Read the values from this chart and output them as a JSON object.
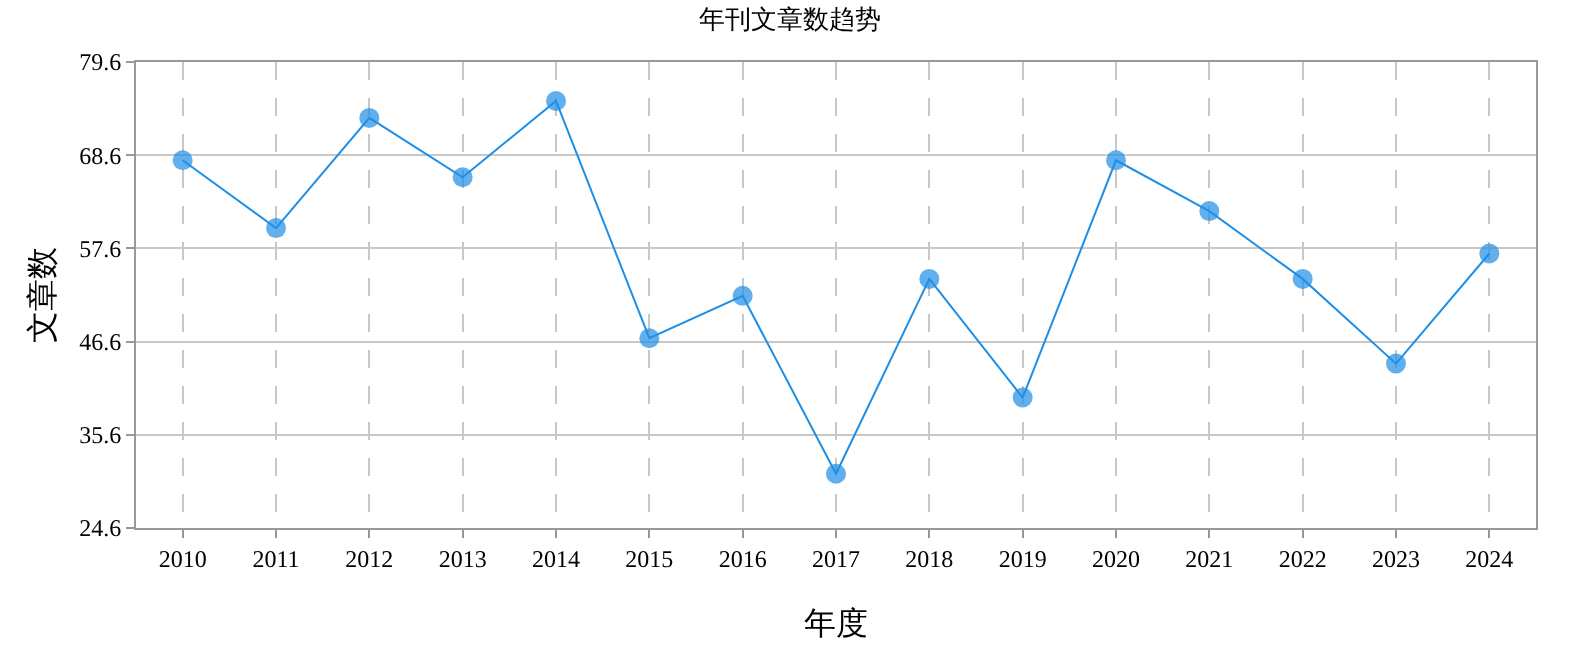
{
  "chart_data": {
    "type": "line",
    "title": "年刊文章数趋势",
    "xlabel": "年度",
    "ylabel": "文章数",
    "categories": [
      "2010",
      "2011",
      "2012",
      "2013",
      "2014",
      "2015",
      "2016",
      "2017",
      "2018",
      "2019",
      "2020",
      "2021",
      "2022",
      "2023",
      "2024"
    ],
    "series": [
      {
        "color": "#1e8fe6",
        "values": [
          68,
          60,
          73,
          66,
          75,
          47,
          52,
          31,
          54,
          40,
          68,
          62,
          54,
          44,
          57
        ]
      }
    ],
    "ylim": [
      24.6,
      79.6
    ],
    "yticks": [
      24.6,
      35.6,
      46.6,
      57.6,
      68.6,
      79.6
    ],
    "grid": true,
    "marker": "circle",
    "line_style": "solid"
  }
}
